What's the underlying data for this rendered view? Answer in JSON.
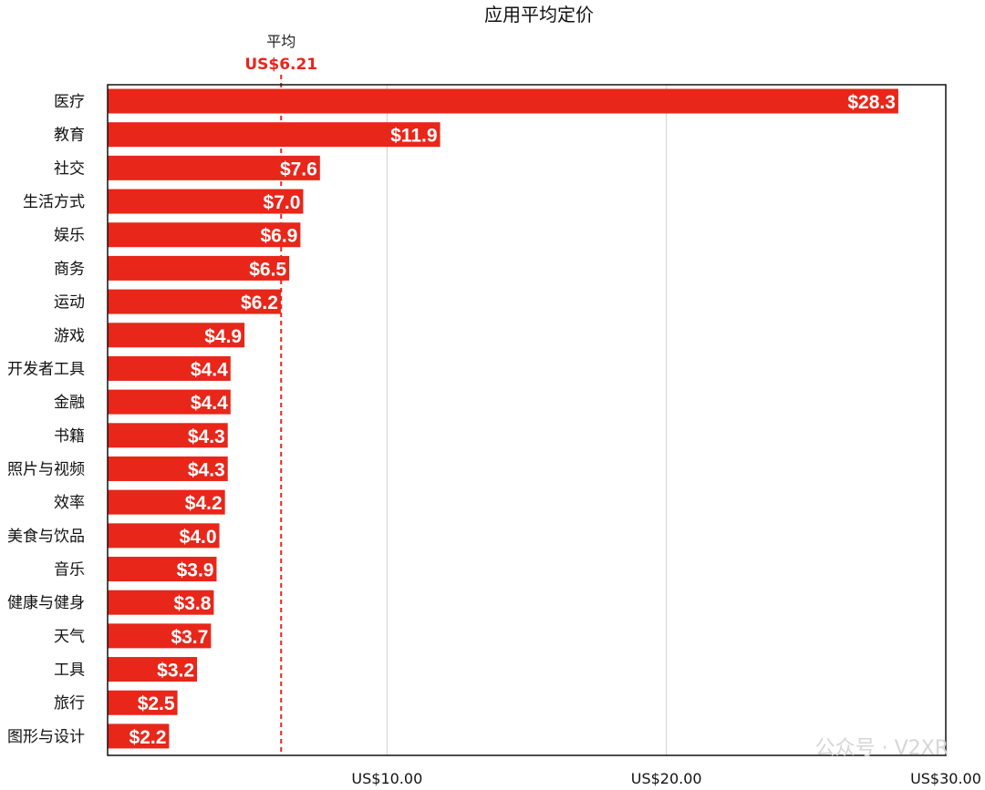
{
  "chart_data": {
    "type": "bar",
    "orientation": "horizontal",
    "title": "应用平均定价",
    "categories": [
      "医疗",
      "教育",
      "社交",
      "生活方式",
      "娱乐",
      "商务",
      "运动",
      "游戏",
      "开发者工具",
      "金融",
      "书籍",
      "照片与视频",
      "效率",
      "美食与饮品",
      "音乐",
      "健康与健身",
      "天气",
      "工具",
      "旅行",
      "图形与设计"
    ],
    "values": [
      28.3,
      11.9,
      7.6,
      7.0,
      6.9,
      6.5,
      6.2,
      4.9,
      4.4,
      4.4,
      4.3,
      4.3,
      4.2,
      4.0,
      3.9,
      3.8,
      3.7,
      3.2,
      2.5,
      2.2
    ],
    "value_labels": [
      "$28.3",
      "$11.9",
      "$7.6",
      "$7.0",
      "$6.9",
      "$6.5",
      "$6.2",
      "$4.9",
      "$4.4",
      "$4.4",
      "$4.3",
      "$4.3",
      "$4.2",
      "$4.0",
      "$3.9",
      "$3.8",
      "$3.7",
      "$3.2",
      "$2.5",
      "$2.2"
    ],
    "xlim": [
      0,
      30
    ],
    "xticks": [
      10,
      20,
      30
    ],
    "xtick_labels": [
      "US$10.00",
      "US$20.00",
      "US$30.00"
    ],
    "grid": "vertical",
    "bar_color": "#e8261a",
    "average": {
      "label": "平均",
      "value": 6.21,
      "value_label": "US$6.21",
      "color": "#e8261a"
    }
  },
  "watermark": "公众号 · V2XR"
}
